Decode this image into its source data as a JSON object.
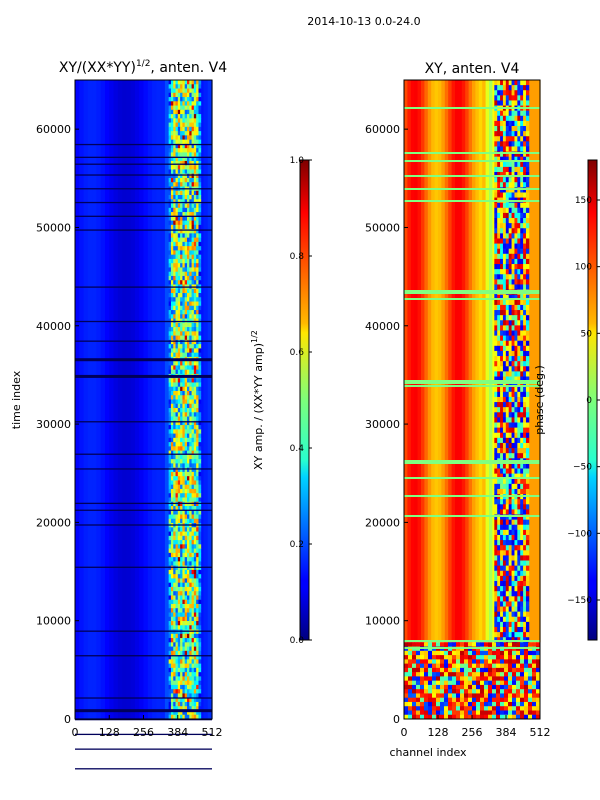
{
  "suptitle": "2014-10-13 0.0-24.0",
  "chart_data": [
    {
      "type": "heatmap",
      "title_prefix": "XY/(XX*YY)",
      "title_sup": "1/2",
      "title_suffix": ", anten. V4",
      "ylabel": "time index",
      "xlim": [
        0,
        512
      ],
      "ylim": [
        0,
        65000
      ],
      "xticks": [
        "0",
        "128",
        "256",
        "384",
        "512"
      ],
      "yticks": [
        "0",
        "10000",
        "20000",
        "30000",
        "40000",
        "50000",
        "60000"
      ],
      "colormap": "jet",
      "colorbar": {
        "label_prefix": "XY amp. / (XX*YY amp)",
        "label_sup": "1/2",
        "range": [
          0.0,
          1.0
        ],
        "ticks": [
          "0.0",
          "0.2",
          "0.4",
          "0.6",
          "0.8",
          "1.0"
        ]
      }
    },
    {
      "type": "heatmap",
      "title": "XY, anten. V4",
      "xlabel": "channel index",
      "xlim": [
        0,
        512
      ],
      "ylim": [
        0,
        65000
      ],
      "xticks": [
        "0",
        "128",
        "256",
        "384",
        "512"
      ],
      "yticks": [
        "0",
        "10000",
        "20000",
        "30000",
        "40000",
        "50000",
        "60000"
      ],
      "colormap": "jet",
      "colorbar": {
        "label": "phase (deg.)",
        "range": [
          -180,
          180
        ],
        "ticks": [
          "−150",
          "−100",
          "−50",
          "0",
          "50",
          "100",
          "150"
        ]
      }
    }
  ]
}
